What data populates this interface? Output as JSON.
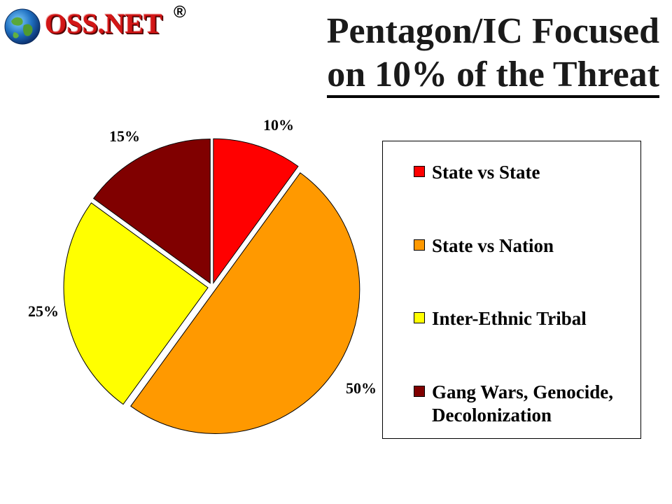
{
  "header": {
    "logo_text": "OSS.NET",
    "logo_registered": "®",
    "title_line1": "Pentagon/IC Focused",
    "title_line2": "on 10% of the Threat"
  },
  "chart_data": {
    "type": "pie",
    "categories": [
      "State vs State",
      "State vs Nation",
      "Inter-Ethnic Tribal",
      "Gang Wars, Genocide, Decolonization"
    ],
    "values": [
      10,
      50,
      25,
      15
    ],
    "value_labels": [
      "10%",
      "50%",
      "25%",
      "15%"
    ],
    "colors": [
      "#ff0000",
      "#ff9900",
      "#ffff00",
      "#800000"
    ],
    "exploded": true,
    "legend_position": "right",
    "start_angle_deg": 0,
    "direction": "clockwise"
  },
  "legend": {
    "items": [
      {
        "label_line1": "State vs State",
        "label_line2": ""
      },
      {
        "label_line1": "State vs Nation",
        "label_line2": ""
      },
      {
        "label_line1": "Inter-Ethnic Tribal",
        "label_line2": ""
      },
      {
        "label_line1": "Gang Wars, Genocide,",
        "label_line2": "Decolonization"
      }
    ]
  }
}
